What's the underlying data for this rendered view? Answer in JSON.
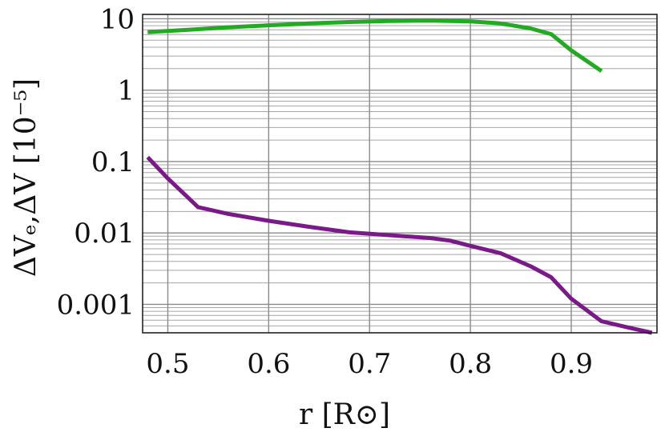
{
  "chart_data": {
    "type": "line",
    "xlabel": "r [R⊙]",
    "ylabel": "ΔVₑ,ΔV    [10⁻⁵]",
    "xlim": [
      0.475,
      0.985
    ],
    "ylim": [
      0.0004,
      11.5
    ],
    "yscale": "log",
    "grid": true,
    "x_ticks": [
      0.5,
      0.6,
      0.7,
      0.8,
      0.9
    ],
    "x_tick_labels": [
      "0.5",
      "0.6",
      "0.7",
      "0.8",
      "0.9"
    ],
    "y_ticks": [
      10,
      1,
      0.1,
      0.01,
      0.001
    ],
    "y_tick_labels": [
      "10",
      "1",
      "0.1",
      "0.01",
      "0.001"
    ],
    "series": [
      {
        "color": "#22aa22",
        "x": [
          0.48,
          0.52,
          0.56,
          0.6,
          0.64,
          0.68,
          0.72,
          0.76,
          0.8,
          0.83,
          0.86,
          0.88,
          0.9,
          0.93
        ],
        "y": [
          6.5,
          7.0,
          7.6,
          8.1,
          8.6,
          9.0,
          9.3,
          9.4,
          9.2,
          8.6,
          7.3,
          6.1,
          3.6,
          1.85
        ]
      },
      {
        "color": "#7a1a88",
        "x": [
          0.48,
          0.5,
          0.53,
          0.56,
          0.6,
          0.64,
          0.68,
          0.72,
          0.76,
          0.78,
          0.8,
          0.83,
          0.86,
          0.88,
          0.9,
          0.93,
          0.955,
          0.98
        ],
        "y": [
          0.115,
          0.058,
          0.023,
          0.0185,
          0.0148,
          0.0122,
          0.0102,
          0.0093,
          0.0085,
          0.0078,
          0.0066,
          0.0052,
          0.0034,
          0.0024,
          0.0012,
          0.00058,
          0.00048,
          0.0004
        ]
      }
    ]
  }
}
